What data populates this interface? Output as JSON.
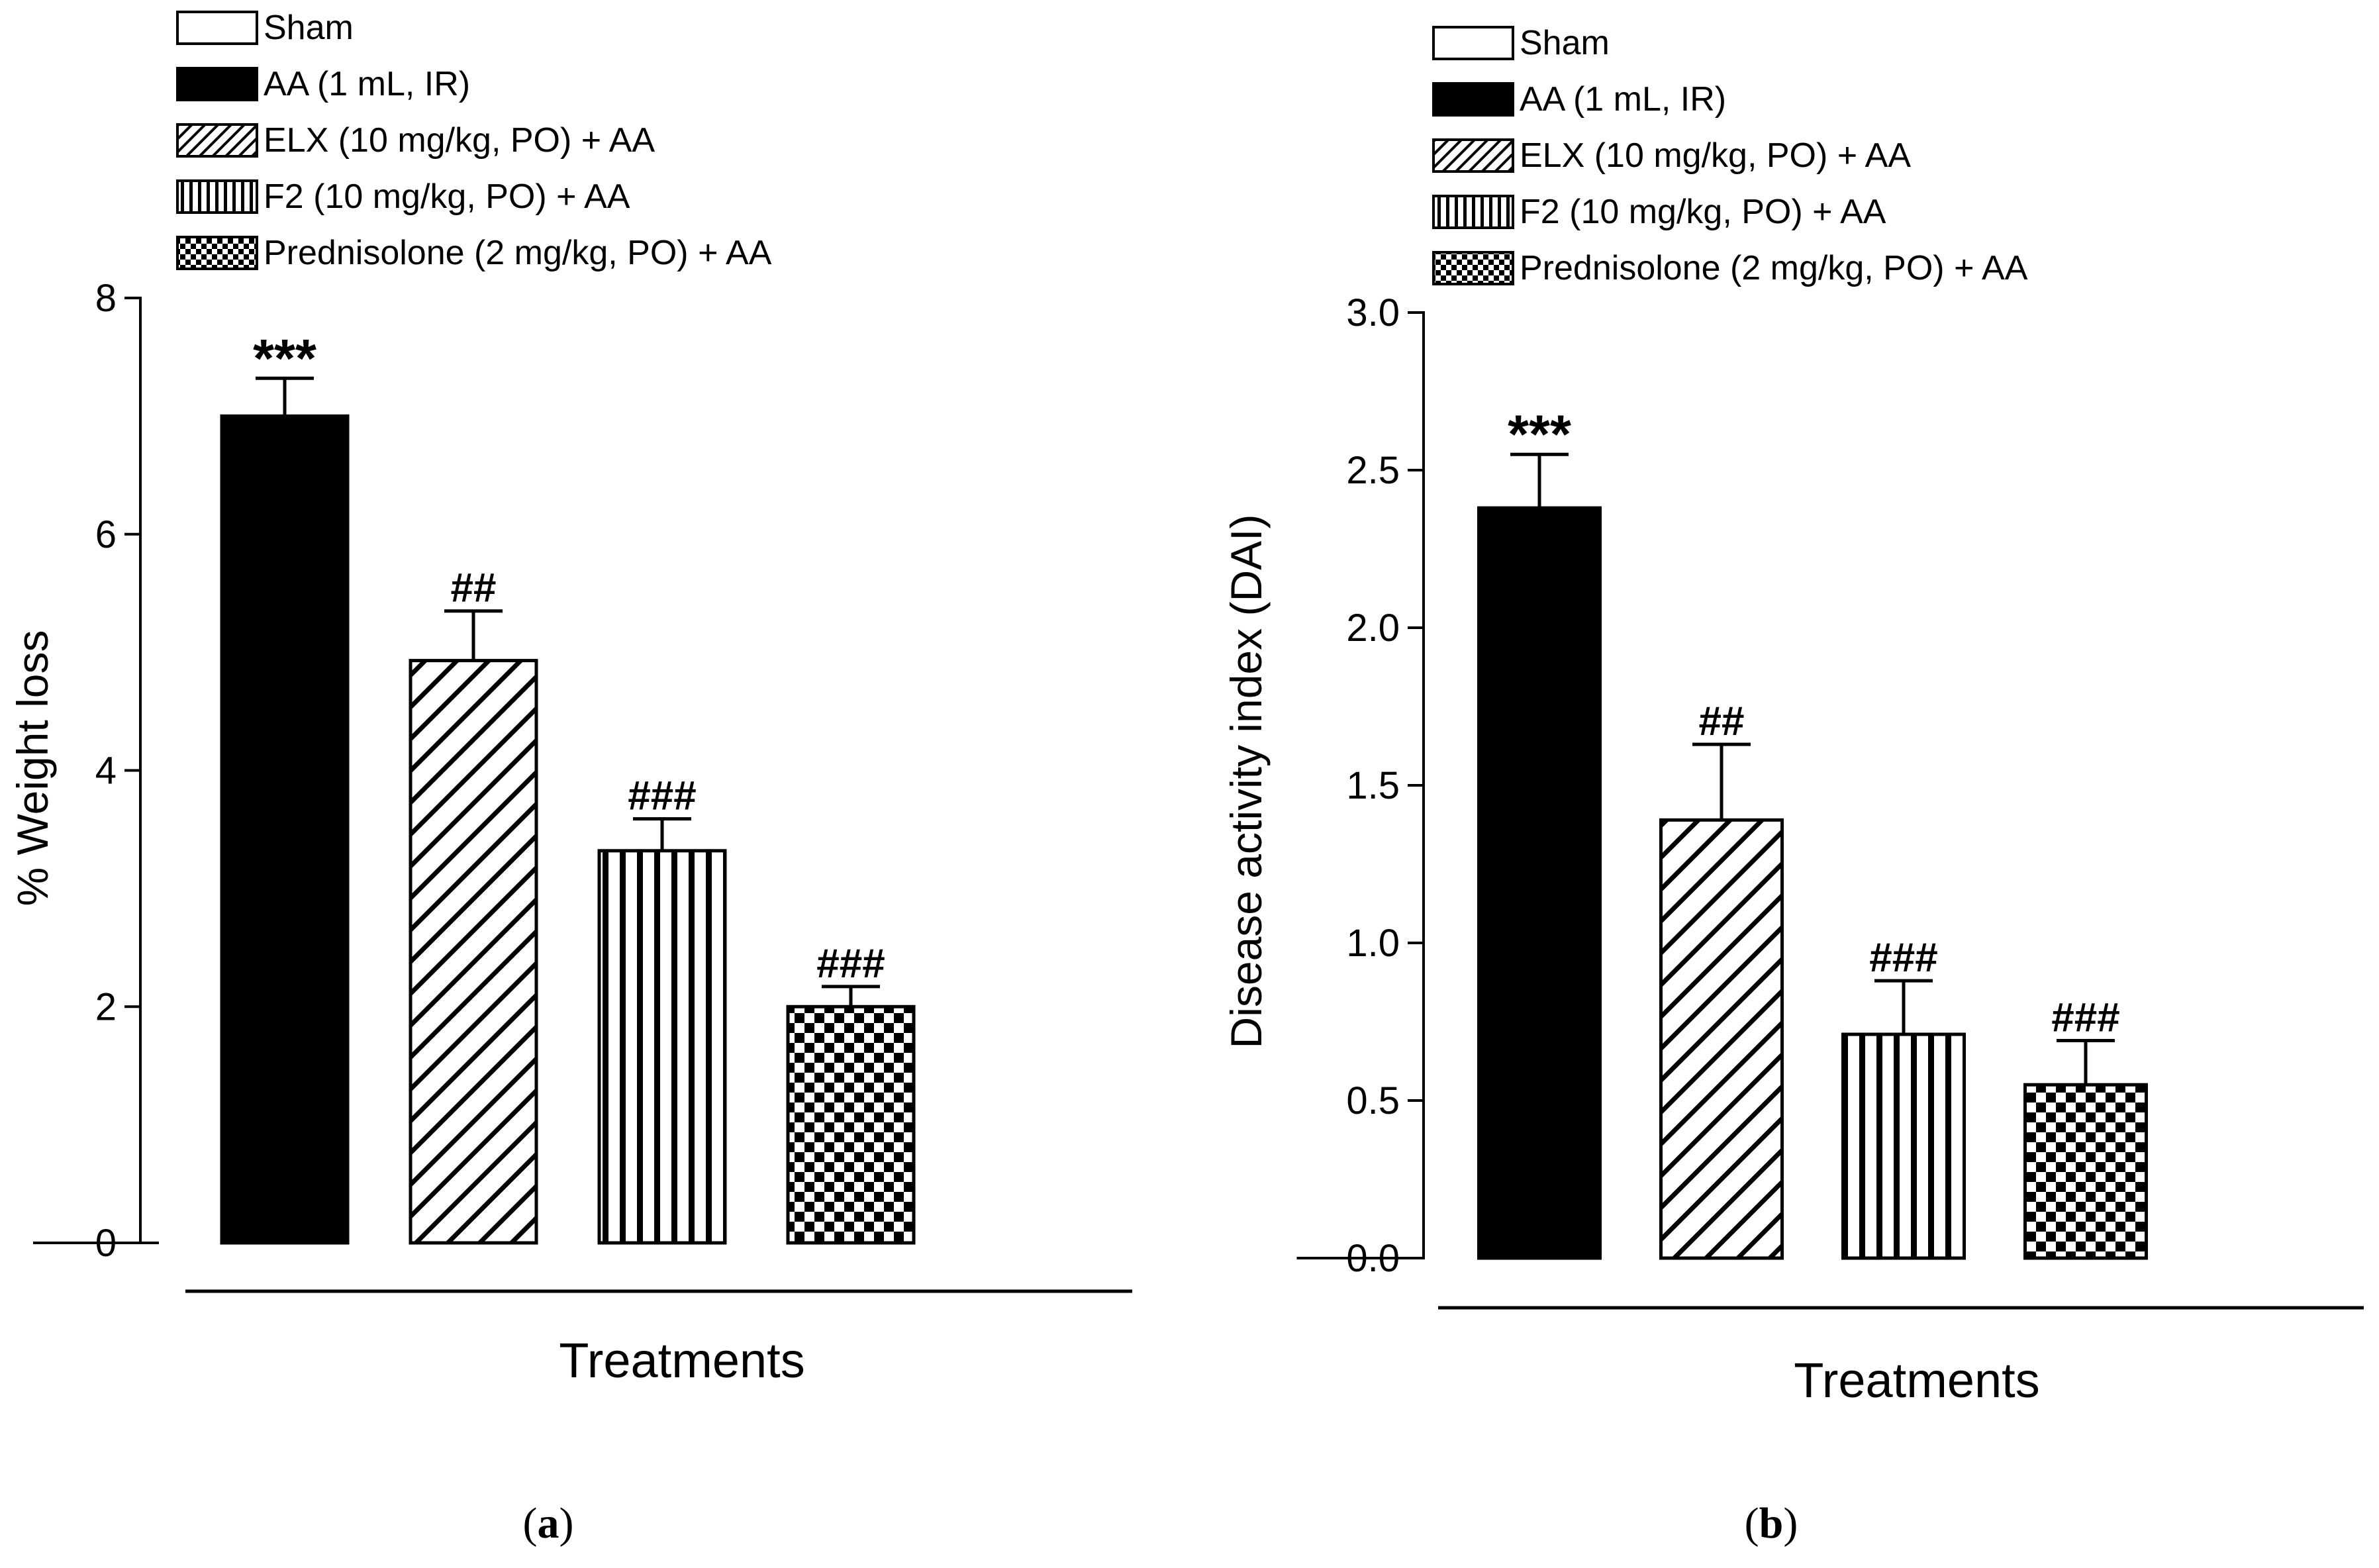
{
  "colors": {
    "ink": "#000000",
    "paper": "#ffffff"
  },
  "legend_items": [
    {
      "label": "Sham",
      "pattern": "white"
    },
    {
      "label": "AA (1 mL, IR)",
      "pattern": "black"
    },
    {
      "label": "ELX (10 mg/kg, PO) + AA",
      "pattern": "diag"
    },
    {
      "label": "F2 (10 mg/kg, PO) + AA",
      "pattern": "vert"
    },
    {
      "label": "Prednisolone (2 mg/kg, PO) + AA",
      "pattern": "check"
    }
  ],
  "chart_data": [
    {
      "type": "bar",
      "panel_label": "a",
      "title": "",
      "xlabel": "Treatments",
      "ylabel": "% Weight loss",
      "ylim": [
        0,
        8
      ],
      "yticks": [
        0,
        2,
        4,
        6,
        8
      ],
      "ytick_labels": [
        "0",
        "2",
        "4",
        "6",
        "8"
      ],
      "grid": false,
      "legend_position": "top",
      "categories": [
        "Sham",
        "AA (1 mL, IR)",
        "ELX (10 mg/kg, PO) + AA",
        "F2 (10 mg/kg, PO) + AA",
        "Prednisolone (2 mg/kg, PO) + AA"
      ],
      "values": [
        0,
        7.0,
        4.93,
        3.32,
        2.0
      ],
      "errors": [
        0,
        0.32,
        0.42,
        0.27,
        0.17
      ],
      "annotations": [
        "",
        "***",
        "##",
        "###",
        "###"
      ]
    },
    {
      "type": "bar",
      "panel_label": "b",
      "title": "",
      "xlabel": "Treatments",
      "ylabel": "Disease activity index (DAI)",
      "ylim": [
        0,
        3.0
      ],
      "yticks": [
        0,
        0.5,
        1.0,
        1.5,
        2.0,
        2.5,
        3.0
      ],
      "ytick_labels": [
        "0.0",
        "0.5",
        "1.0",
        "1.5",
        "2.0",
        "2.5",
        "3.0"
      ],
      "grid": false,
      "legend_position": "top",
      "categories": [
        "Sham",
        "AA (1 mL, IR)",
        "ELX (10 mg/kg, PO) + AA",
        "F2 (10 mg/kg, PO) + AA",
        "Prednisolone (2 mg/kg, PO) + AA"
      ],
      "values": [
        0,
        2.38,
        1.39,
        0.71,
        0.55
      ],
      "errors": [
        0,
        0.17,
        0.24,
        0.17,
        0.14
      ],
      "annotations": [
        "",
        "***",
        "##",
        "###",
        "###"
      ]
    }
  ]
}
